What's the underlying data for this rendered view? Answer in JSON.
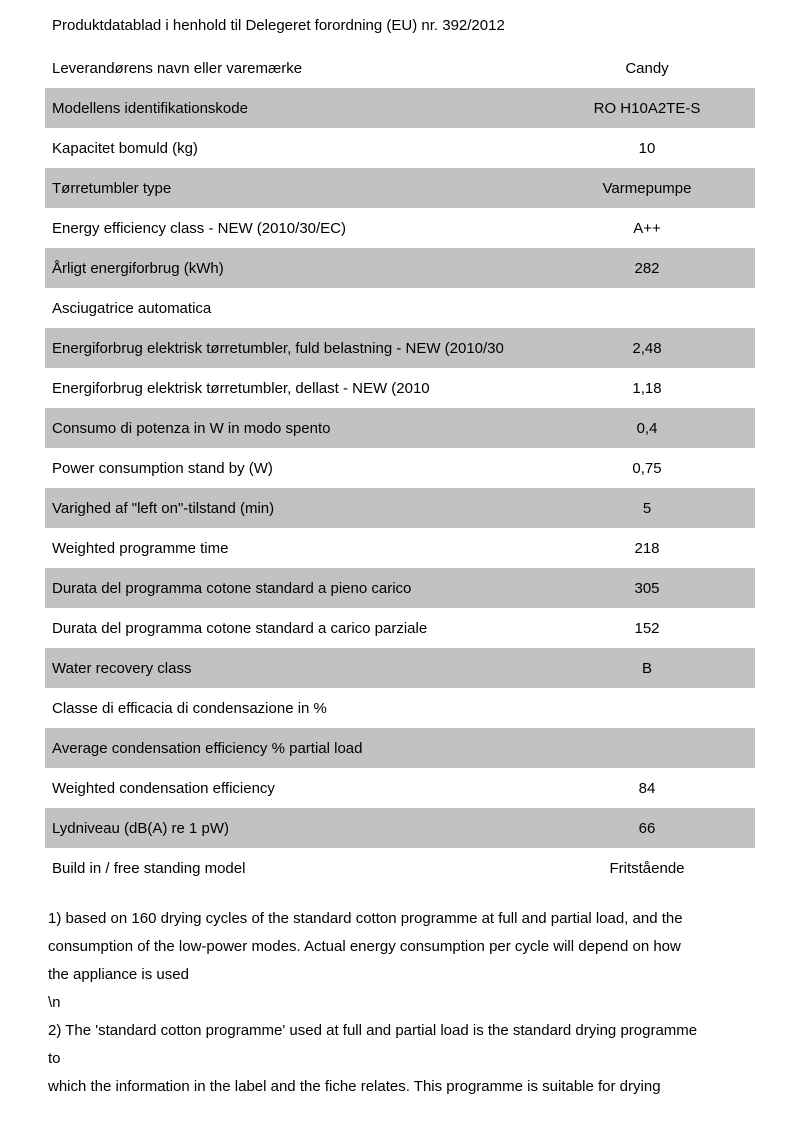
{
  "page": {
    "title": "Produktdatablad i henhold til Delegeret forordning (EU) nr. 392/2012"
  },
  "table": {
    "rows": [
      {
        "label": "Leverandørens navn eller varemærke",
        "value": "Candy",
        "shaded": false
      },
      {
        "label": "Modellens identifikationskode",
        "value": "RO H10A2TE-S",
        "shaded": true
      },
      {
        "label": "Kapacitet bomuld (kg)",
        "value": "10",
        "shaded": false
      },
      {
        "label": "Tørretumbler type",
        "value": "Varmepumpe",
        "shaded": true
      },
      {
        "label": "Energy efficiency class - NEW (2010/30/EC)",
        "value": "A++",
        "shaded": false
      },
      {
        "label": "Årligt energiforbrug (kWh)",
        "value": "282",
        "shaded": true
      },
      {
        "label": "Asciugatrice automatica",
        "value": "",
        "shaded": false
      },
      {
        "label": "Energiforbrug elektrisk tørretumbler, fuld belastning - NEW (2010/30",
        "value": "2,48",
        "shaded": true
      },
      {
        "label": "Energiforbrug elektrisk tørretumbler, dellast - NEW (2010",
        "value": "1,18",
        "shaded": false
      },
      {
        "label": "Consumo di potenza in W in modo spento",
        "value": "0,4",
        "shaded": true
      },
      {
        "label": "Power consumption stand by (W)",
        "value": "0,75",
        "shaded": false
      },
      {
        "label": "Varighed af \"left on\"-tilstand (min)",
        "value": "5",
        "shaded": true
      },
      {
        "label": "Weighted programme time",
        "value": "218",
        "shaded": false
      },
      {
        "label": "Durata del programma cotone standard a pieno carico",
        "value": "305",
        "shaded": true
      },
      {
        "label": "Durata del programma cotone standard a carico parziale",
        "value": "152",
        "shaded": false
      },
      {
        "label": "Water recovery class",
        "value": "B",
        "shaded": true
      },
      {
        "label": "Classe di efficacia di condensazione in %",
        "value": "",
        "shaded": false
      },
      {
        "label": "Average condensation efficiency % partial load",
        "value": "",
        "shaded": true
      },
      {
        "label": "Weighted condensation efficiency",
        "value": "84",
        "shaded": false
      },
      {
        "label": "Lydniveau (dB(A) re 1 pW)",
        "value": "66",
        "shaded": true
      },
      {
        "label": "Build in / free standing model",
        "value": "Fritstående",
        "shaded": false
      }
    ]
  },
  "footnotes": {
    "lines": [
      "1) based on 160 drying cycles of the standard cotton programme at full and partial load, and the",
      "consumption of the low-power modes. Actual energy consumption per cycle will depend on how",
      "the appliance is used",
      "\\n",
      "2) The 'standard cotton programme' used at full and partial load is the standard drying programme",
      "to",
      "which the information in the label and the fiche relates. This programme is suitable for drying"
    ]
  },
  "colors": {
    "row_shaded": "#c2c2c2",
    "row_plain": "#ffffff",
    "text": "#000000"
  }
}
